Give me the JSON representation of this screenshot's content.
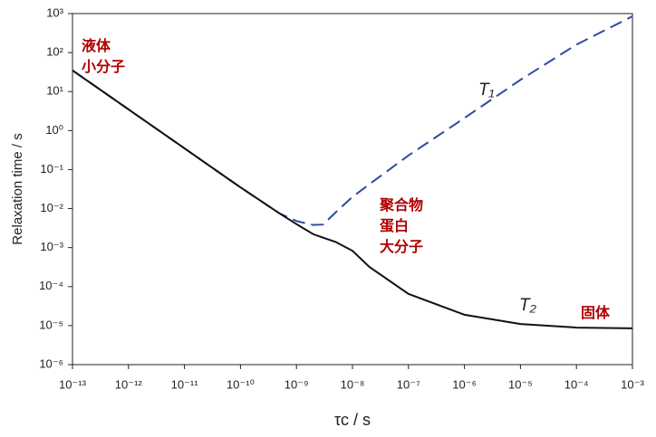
{
  "chart_data": {
    "type": "line",
    "x_label": "τc / s",
    "y_label": "Relaxation time / s",
    "xlog": true,
    "ylog": true,
    "xlim": [
      1e-13,
      0.001
    ],
    "ylim": [
      1e-06,
      1000
    ],
    "xticks": [
      {
        "value": 1e-13,
        "label": "10⁻¹³"
      },
      {
        "value": 1e-12,
        "label": "10⁻¹²"
      },
      {
        "value": 1e-11,
        "label": "10⁻¹¹"
      },
      {
        "value": 1e-10,
        "label": "10⁻¹⁰"
      },
      {
        "value": 1e-09,
        "label": "10⁻⁹"
      },
      {
        "value": 1e-08,
        "label": "10⁻⁸"
      },
      {
        "value": 1e-07,
        "label": "10⁻⁷"
      },
      {
        "value": 1e-06,
        "label": "10⁻⁶"
      },
      {
        "value": 1e-05,
        "label": "10⁻⁵"
      },
      {
        "value": 0.0001,
        "label": "10⁻⁴"
      },
      {
        "value": 0.001,
        "label": "10⁻³"
      }
    ],
    "yticks": [
      {
        "value": 1000,
        "label": "10³"
      },
      {
        "value": 100,
        "label": "10²"
      },
      {
        "value": 10,
        "label": "10¹"
      },
      {
        "value": 1,
        "label": "10⁰"
      },
      {
        "value": 0.1,
        "label": "10⁻¹"
      },
      {
        "value": 0.01,
        "label": "10⁻²"
      },
      {
        "value": 0.001,
        "label": "10⁻³"
      },
      {
        "value": 0.0001,
        "label": "10⁻⁴"
      },
      {
        "value": 1e-05,
        "label": "10⁻⁵"
      },
      {
        "value": 1e-06,
        "label": "10⁻⁶"
      }
    ],
    "x": [
      1e-13,
      1e-12,
      1e-11,
      1e-10,
      5e-10,
      1e-09,
      2e-09,
      3e-09,
      5e-09,
      1e-08,
      2e-08,
      1e-07,
      1e-06,
      1e-05,
      0.0001,
      0.001
    ],
    "series": [
      {
        "name": "T₁",
        "color": "#2f4aa0",
        "dashed": true,
        "values": [
          35,
          3.5,
          0.35,
          0.035,
          0.0075,
          0.0048,
          0.0038,
          0.0039,
          0.008,
          0.02,
          0.042,
          0.23,
          2.1,
          20,
          160,
          850
        ]
      },
      {
        "name": "T₂",
        "color": "#111111",
        "dashed": false,
        "values": [
          35,
          3.5,
          0.35,
          0.035,
          0.0075,
          0.004,
          0.0022,
          0.0018,
          0.0014,
          0.00083,
          0.00032,
          6.5e-05,
          1.9e-05,
          1.1e-05,
          8.9e-06,
          8.5e-06
        ]
      }
    ],
    "annotations": [
      {
        "lines": [
          "液体",
          "小分子"
        ],
        "color": "#b00000"
      },
      {
        "lines": [
          "聚合物",
          "蛋白",
          "大分子"
        ],
        "color": "#b00000"
      },
      {
        "lines": [
          "固体"
        ],
        "color": "#b00000"
      }
    ]
  }
}
